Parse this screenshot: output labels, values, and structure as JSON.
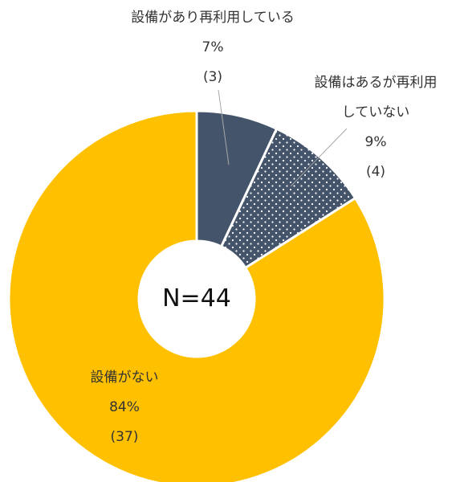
{
  "chart_data": {
    "type": "donut",
    "categories": [
      "設備があり再利用している",
      "設備はあるが再利用していない",
      "設備がない"
    ],
    "values": [
      7,
      9,
      84
    ],
    "value_labels": [
      "7%",
      "9%",
      "84%"
    ],
    "counts": [
      3,
      4,
      37
    ],
    "count_labels": [
      "(3)",
      "(4)",
      "(37)"
    ],
    "colors": [
      "#44546a",
      "#44546a",
      "#ffc000"
    ],
    "fills": [
      "solid",
      "dots",
      "solid"
    ],
    "center_label": "N=44"
  }
}
